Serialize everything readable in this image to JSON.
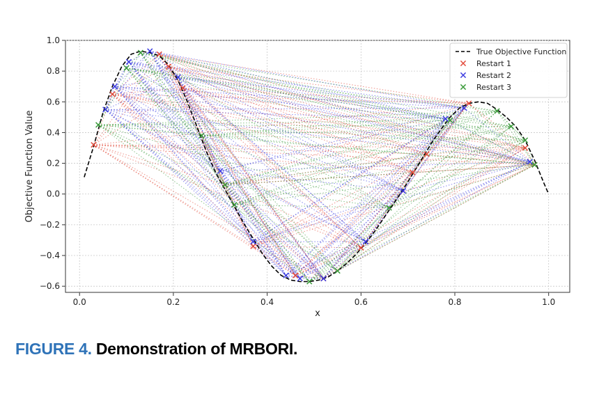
{
  "caption": {
    "label": "FIGURE 4.",
    "text": "Demonstration of MRBORI."
  },
  "chart_data": {
    "type": "line",
    "xlabel": "x",
    "ylabel": "Objective Function Value",
    "xlim": [
      -0.03,
      1.045
    ],
    "ylim": [
      -0.64,
      1.0
    ],
    "xticks": [
      0.0,
      0.2,
      0.4,
      0.6,
      0.8,
      1.0
    ],
    "xtick_labels": [
      "0.0",
      "0.2",
      "0.4",
      "0.6",
      "0.8",
      "1.0"
    ],
    "yticks": [
      -0.6,
      -0.4,
      -0.2,
      0.0,
      0.2,
      0.4,
      0.6,
      0.8,
      1.0
    ],
    "ytick_labels": [
      "−0.6",
      "−0.4",
      "−0.2",
      "0.0",
      "0.2",
      "0.4",
      "0.6",
      "0.8",
      "1.0"
    ],
    "grid": true,
    "legend_position": "top-right",
    "true_function": {
      "name": "True Objective Function",
      "color": "#000000",
      "style": "dashed",
      "x": [
        0.01,
        0.03,
        0.05,
        0.07,
        0.09,
        0.11,
        0.13,
        0.15,
        0.17,
        0.19,
        0.21,
        0.23,
        0.25,
        0.27,
        0.29,
        0.31,
        0.33,
        0.35,
        0.37,
        0.39,
        0.41,
        0.43,
        0.45,
        0.47,
        0.49,
        0.51,
        0.53,
        0.55,
        0.57,
        0.59,
        0.61,
        0.63,
        0.65,
        0.67,
        0.69,
        0.71,
        0.73,
        0.75,
        0.77,
        0.79,
        0.81,
        0.83,
        0.85,
        0.87,
        0.89,
        0.91,
        0.93,
        0.95,
        0.97,
        0.99,
        1.0
      ],
      "y": [
        0.11,
        0.31,
        0.53,
        0.7,
        0.83,
        0.91,
        0.93,
        0.92,
        0.9,
        0.84,
        0.74,
        0.6,
        0.44,
        0.28,
        0.14,
        0.03,
        -0.08,
        -0.19,
        -0.29,
        -0.39,
        -0.47,
        -0.53,
        -0.56,
        -0.57,
        -0.57,
        -0.56,
        -0.54,
        -0.5,
        -0.45,
        -0.39,
        -0.32,
        -0.24,
        -0.15,
        -0.06,
        0.03,
        0.13,
        0.23,
        0.33,
        0.42,
        0.5,
        0.56,
        0.59,
        0.6,
        0.59,
        0.55,
        0.5,
        0.44,
        0.35,
        0.22,
        0.07,
        0.0
      ]
    },
    "series": [
      {
        "name": "Restart 1",
        "color": "#e24a3b",
        "x": [
          0.03,
          0.07,
          0.17,
          0.19,
          0.22,
          0.31,
          0.37,
          0.46,
          0.52,
          0.6,
          0.71,
          0.74,
          0.83,
          0.95,
          0.97
        ],
        "y": [
          0.32,
          0.65,
          0.91,
          0.83,
          0.69,
          0.06,
          -0.34,
          -0.53,
          -0.55,
          -0.35,
          0.14,
          0.26,
          0.59,
          0.3,
          0.19
        ]
      },
      {
        "name": "Restart 2",
        "color": "#3b3be0",
        "x": [
          0.055,
          0.075,
          0.105,
          0.15,
          0.21,
          0.3,
          0.37,
          0.44,
          0.47,
          0.52,
          0.61,
          0.69,
          0.78,
          0.82,
          0.96
        ],
        "y": [
          0.55,
          0.7,
          0.86,
          0.93,
          0.76,
          0.15,
          -0.31,
          -0.53,
          -0.55,
          -0.55,
          -0.31,
          0.02,
          0.49,
          0.56,
          0.21
        ]
      },
      {
        "name": "Restart 3",
        "color": "#3a9a3a",
        "x": [
          0.04,
          0.1,
          0.13,
          0.26,
          0.31,
          0.33,
          0.49,
          0.55,
          0.66,
          0.79,
          0.89,
          0.92,
          0.95,
          0.97
        ],
        "y": [
          0.45,
          0.82,
          0.92,
          0.38,
          0.06,
          -0.07,
          -0.57,
          -0.5,
          -0.09,
          0.48,
          0.54,
          0.44,
          0.35,
          0.19
        ]
      }
    ]
  }
}
